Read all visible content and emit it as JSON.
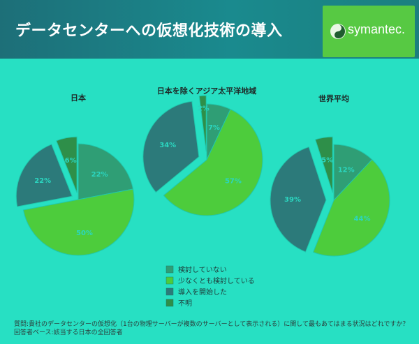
{
  "slide": {
    "title": "データセンターへの仮想化技術の導入",
    "footnote": "質問:貴社のデータセンターの仮想化（1台の物理サーバーが複数のサーバーとして表示される）に関して最もあてはまる状況はどれですか？回答者ベース:該当する日本の全回答者"
  },
  "logo": {
    "text": "symantec.",
    "icon": "symantec-logo-icon",
    "box_color": "#57c943"
  },
  "colors": {
    "background": "#27e0c3",
    "header": "#1a8a8e",
    "not_considered": "#2f9e75",
    "considering": "#4dcc3c",
    "started": "#2c7a7a",
    "unknown": "#2e8f49"
  },
  "chart_data": [
    {
      "type": "pie",
      "title": "日本",
      "categories": [
        "検討していない",
        "少なくとも検討している",
        "導入を開始した",
        "不明"
      ],
      "values": [
        22,
        50,
        22,
        6
      ],
      "labels": [
        "22%",
        "50%",
        "22%",
        "6%"
      ]
    },
    {
      "type": "pie",
      "title": "日本を除くアジア太平洋地域",
      "categories": [
        "検討していない",
        "少なくとも検討している",
        "導入を開始した",
        "不明"
      ],
      "values": [
        7,
        57,
        34,
        2
      ],
      "labels": [
        "7%",
        "57%",
        "34%",
        "2%"
      ]
    },
    {
      "type": "pie",
      "title": "世界平均",
      "categories": [
        "検討していない",
        "少なくとも検討している",
        "導入を開始した",
        "不明"
      ],
      "values": [
        12,
        44,
        39,
        5
      ],
      "labels": [
        "12%",
        "44%",
        "39%",
        "5%"
      ]
    }
  ],
  "legend": {
    "placement": "bottom-center",
    "items": [
      "検討していない",
      "少なくとも検討している",
      "導入を開始した",
      "不明"
    ]
  }
}
